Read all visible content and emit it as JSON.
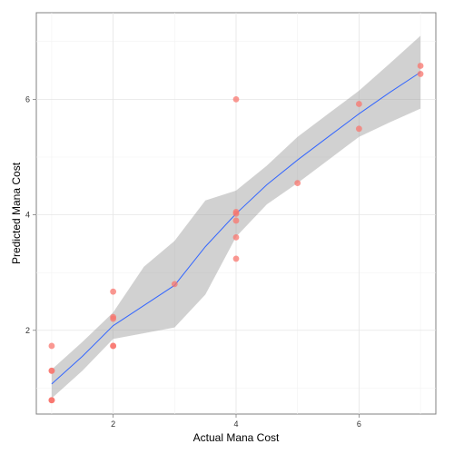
{
  "chart_data": {
    "type": "scatter",
    "title": "",
    "xlabel": "Actual Mana Cost",
    "ylabel": "Predicted Mana Cost",
    "xlim": [
      0.75,
      7.25
    ],
    "ylim": [
      0.55,
      7.5
    ],
    "x_ticks": [
      2,
      4,
      6
    ],
    "x_minor_ticks": [
      1,
      3,
      5,
      7
    ],
    "y_ticks": [
      2,
      4,
      6
    ],
    "y_minor_ticks": [
      1,
      3,
      5,
      7
    ],
    "tick_labels_x": [
      "2",
      "4",
      "6"
    ],
    "tick_labels_y": [
      "2",
      "4",
      "6"
    ],
    "grid": true,
    "points": {
      "color": "#F8766D",
      "x": [
        1,
        1,
        1,
        1,
        1,
        1,
        2,
        2,
        2,
        2,
        2,
        3,
        4,
        4,
        4,
        4,
        4,
        4,
        5,
        6,
        6,
        7,
        7
      ],
      "y": [
        1.73,
        1.3,
        1.3,
        0.79,
        0.79,
        0.79,
        2.67,
        2.23,
        2.2,
        1.73,
        1.73,
        2.8,
        6.0,
        4.05,
        4.02,
        3.9,
        3.61,
        3.24,
        4.55,
        5.92,
        5.49,
        6.58,
        6.44
      ]
    },
    "smooth": {
      "method": "loess",
      "color": "#3366FF",
      "band_color": "#999999",
      "x": [
        1.0,
        1.5,
        2.0,
        2.5,
        3.0,
        3.5,
        4.0,
        4.5,
        5.0,
        5.5,
        6.0,
        6.5,
        7.0
      ],
      "y": [
        1.07,
        1.55,
        2.08,
        2.43,
        2.78,
        3.45,
        4.02,
        4.52,
        4.95,
        5.35,
        5.75,
        6.12,
        6.47
      ],
      "ymin": [
        0.82,
        1.3,
        1.85,
        1.95,
        2.05,
        2.62,
        3.62,
        4.18,
        4.55,
        4.95,
        5.35,
        5.6,
        5.84
      ],
      "ymax": [
        1.32,
        1.8,
        2.31,
        3.1,
        3.55,
        4.25,
        4.42,
        4.85,
        5.35,
        5.75,
        6.15,
        6.62,
        7.1
      ]
    }
  }
}
